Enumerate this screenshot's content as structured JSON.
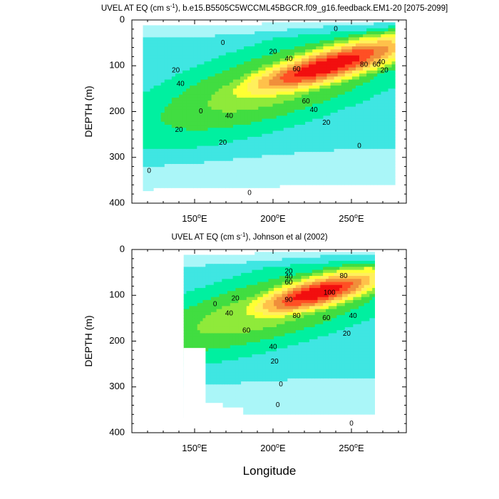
{
  "chart_data": [
    {
      "type": "contour",
      "title_prefix": "UVEL AT EQ (cm s",
      "title_suffix": "), b.e15.B5505C5WCCML45BGCR.f09_g16.feedback.EM1-20 [2075-2099]",
      "superscript": "-1",
      "ylabel": "DEPTH (m)",
      "xlabel": "",
      "xlim": [
        110,
        285
      ],
      "ylim": [
        0,
        400
      ],
      "y_inverted": true,
      "xticks": [
        150,
        200,
        250
      ],
      "xtick_labels": [
        "150",
        "200",
        "250"
      ],
      "xtick_suffix": "E",
      "yticks": [
        0,
        100,
        200,
        300,
        400
      ],
      "ytick_labels": [
        "0",
        "100",
        "200",
        "300",
        "400"
      ],
      "data_extent": {
        "lon": [
          117,
          278
        ],
        "depth": [
          5,
          400
        ]
      },
      "core": {
        "lon": 235,
        "depth": 100,
        "max_value": 100
      },
      "contour_levels": [
        -10,
        0,
        10,
        20,
        30,
        40,
        50,
        60,
        70,
        80,
        90,
        100
      ],
      "contour_labels": [
        {
          "text": "0",
          "lon": 240,
          "depth": 20
        },
        {
          "text": "0",
          "lon": 168,
          "depth": 50
        },
        {
          "text": "20",
          "lon": 200,
          "depth": 70
        },
        {
          "text": "40",
          "lon": 210,
          "depth": 85
        },
        {
          "text": "60",
          "lon": 215,
          "depth": 108
        },
        {
          "text": "80",
          "lon": 258,
          "depth": 98
        },
        {
          "text": "60",
          "lon": 266,
          "depth": 98
        },
        {
          "text": "40",
          "lon": 269,
          "depth": 92
        },
        {
          "text": "20",
          "lon": 271,
          "depth": 110
        },
        {
          "text": "40",
          "lon": 141,
          "depth": 140
        },
        {
          "text": "20",
          "lon": 138,
          "depth": 110
        },
        {
          "text": "60",
          "lon": 221,
          "depth": 178
        },
        {
          "text": "40",
          "lon": 172,
          "depth": 210
        },
        {
          "text": "40",
          "lon": 226,
          "depth": 197
        },
        {
          "text": "20",
          "lon": 234,
          "depth": 225
        },
        {
          "text": "20",
          "lon": 140,
          "depth": 240
        },
        {
          "text": "20",
          "lon": 168,
          "depth": 268
        },
        {
          "text": "0",
          "lon": 255,
          "depth": 275
        },
        {
          "text": "0",
          "lon": 185,
          "depth": 378
        },
        {
          "text": "0",
          "lon": 154,
          "depth": 200
        },
        {
          "text": "0",
          "lon": 121,
          "depth": 330
        }
      ]
    },
    {
      "type": "contour",
      "title_prefix": "UVEL AT EQ (cm s",
      "title_suffix": "), Johnson et al (2002)",
      "superscript": "-1",
      "ylabel": "DEPTH (m)",
      "xlabel": "Longitude",
      "xlim": [
        110,
        285
      ],
      "ylim": [
        0,
        400
      ],
      "y_inverted": true,
      "xticks": [
        150,
        200,
        250
      ],
      "xtick_labels": [
        "150",
        "200",
        "250"
      ],
      "xtick_suffix": "E",
      "yticks": [
        0,
        100,
        200,
        300,
        400
      ],
      "ytick_labels": [
        "0",
        "100",
        "200",
        "300",
        "400"
      ],
      "data_extent": {
        "lon": [
          143,
          265
        ],
        "depth": [
          5,
          400
        ]
      },
      "core": {
        "lon": 228,
        "depth": 95,
        "max_value": 100
      },
      "contour_levels": [
        -10,
        0,
        10,
        20,
        30,
        40,
        50,
        60,
        70,
        80,
        90,
        100
      ],
      "contour_labels": [
        {
          "text": "20",
          "lon": 210,
          "depth": 48
        },
        {
          "text": "40",
          "lon": 210,
          "depth": 60
        },
        {
          "text": "60",
          "lon": 210,
          "depth": 72
        },
        {
          "text": "80",
          "lon": 245,
          "depth": 58
        },
        {
          "text": "90",
          "lon": 210,
          "depth": 110
        },
        {
          "text": "100",
          "lon": 236,
          "depth": 95
        },
        {
          "text": "80",
          "lon": 215,
          "depth": 145
        },
        {
          "text": "60",
          "lon": 234,
          "depth": 150
        },
        {
          "text": "40",
          "lon": 251,
          "depth": 145
        },
        {
          "text": "20",
          "lon": 247,
          "depth": 184
        },
        {
          "text": "20",
          "lon": 176,
          "depth": 107
        },
        {
          "text": "40",
          "lon": 172,
          "depth": 140
        },
        {
          "text": "60",
          "lon": 183,
          "depth": 177
        },
        {
          "text": "40",
          "lon": 200,
          "depth": 213
        },
        {
          "text": "20",
          "lon": 201,
          "depth": 245
        },
        {
          "text": "0",
          "lon": 163,
          "depth": 120
        },
        {
          "text": "0",
          "lon": 205,
          "depth": 295
        },
        {
          "text": "0",
          "lon": 203,
          "depth": 340
        },
        {
          "text": "0",
          "lon": 250,
          "depth": 380
        }
      ]
    }
  ],
  "colors": {
    "levels": [
      "#ffffff",
      "#aaf6f8",
      "#3fe6e2",
      "#00f0a0",
      "#41dd41",
      "#8fea3a",
      "#ffff33",
      "#fff05c",
      "#ffc14a",
      "#f08f3b",
      "#ff4f24",
      "#f20f0f",
      "#d40d0d"
    ]
  }
}
